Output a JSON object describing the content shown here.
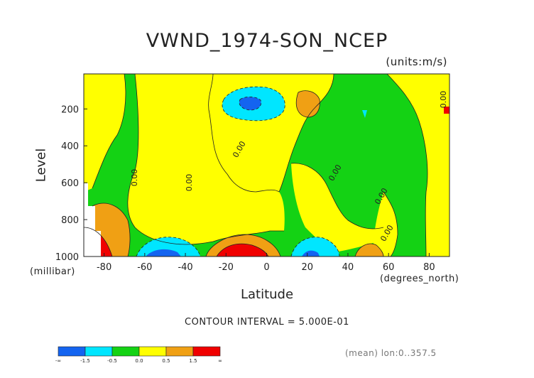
{
  "chart_data": {
    "type": "heatmap",
    "title": "VWND_1974-SON_NCEP",
    "units_label": "(units:m/s)",
    "xlabel": "Latitude",
    "x_unit": "(degrees_north)",
    "ylabel": "Level",
    "y_unit": "(millibar)",
    "xlim": [
      -90,
      90
    ],
    "ylim": [
      1000,
      10
    ],
    "x_ticks": [
      "-80",
      "-60",
      "-40",
      "-20",
      "0",
      "20",
      "40",
      "60",
      "80"
    ],
    "x_tick_values": [
      -80,
      -60,
      -40,
      -20,
      0,
      20,
      40,
      60,
      80
    ],
    "y_ticks": [
      "200",
      "400",
      "600",
      "800",
      "1000"
    ],
    "y_tick_values": [
      200,
      400,
      600,
      800,
      1000
    ],
    "contour_interval_text": "CONTOUR INTERVAL = 5.000E-01",
    "contour_labels": [
      "0.00",
      "0.00",
      "0.00",
      "0.00",
      "0.00",
      "0.00",
      "0.00"
    ],
    "footer": "(mean) lon:0..357.5",
    "colorbar": {
      "labels": [
        "-∞",
        "-1.5",
        "-0.5",
        "0.0",
        "0.5",
        "1.5",
        "∞"
      ],
      "colors": [
        "#1464f0",
        "#00e6ff",
        "#14d214",
        "#ffff00",
        "#f0a014",
        "#f00000"
      ]
    },
    "palette": {
      "strong_neg": "#1464f0",
      "neg": "#00e6ff",
      "near_zero_neg": "#14d214",
      "near_zero_pos": "#ffff00",
      "pos": "#f0a014",
      "strong_pos": "#f00000"
    }
  }
}
